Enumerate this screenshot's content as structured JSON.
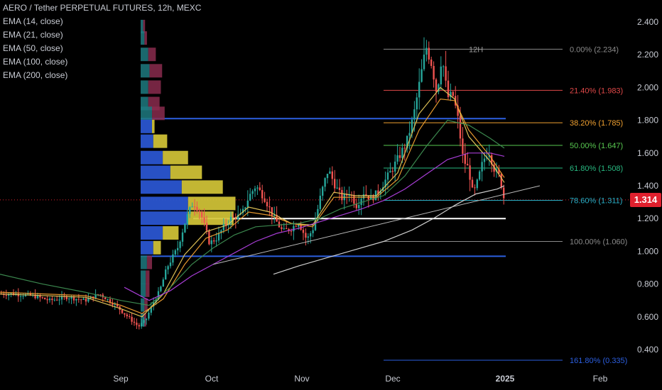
{
  "header": {
    "title": "AERO / Tether PERPETUAL FUTURES, 12h, MEXC"
  },
  "indicators": [
    "EMA (14, close)",
    "EMA (21, close)",
    "EMA (50, close)",
    "EMA (100, close)",
    "EMA (200, close)"
  ],
  "price_tag": {
    "value": "1.314",
    "color": "#e0202e"
  },
  "timeframe_label": "12H",
  "colors": {
    "up": "#26a69a",
    "down": "#ef5350",
    "ema14": "#e8c95a",
    "ema21": "#f0a030",
    "ema50": "#3e8e52",
    "ema100": "#b040e0",
    "ema200": "#d8d8d8",
    "vp_buy": "#2a55d0",
    "vp_sell": "#d4c637",
    "vp_buy_out": "#1e7a80",
    "vp_sell_out": "#8a2c4e"
  },
  "chart_data": {
    "type": "candlestick",
    "y_axis": {
      "min": 0.32,
      "max": 2.44,
      "ticks": [
        "2.400",
        "2.200",
        "2.000",
        "1.800",
        "1.600",
        "1.400",
        "1.200",
        "1.000",
        "0.800",
        "0.600",
        "0.400"
      ]
    },
    "x_axis": {
      "ticks": [
        "Sep",
        "Oct",
        "Nov",
        "Dec",
        "2025",
        "Feb"
      ]
    },
    "price_path": [
      [
        0,
        0.74
      ],
      [
        20,
        0.74
      ],
      [
        45,
        0.73
      ],
      [
        70,
        0.7
      ],
      [
        95,
        0.72
      ],
      [
        120,
        0.7
      ],
      [
        140,
        0.74
      ],
      [
        160,
        0.68
      ],
      [
        180,
        0.6
      ],
      [
        195,
        0.54
      ],
      [
        205,
        0.58
      ],
      [
        215,
        0.68
      ],
      [
        225,
        0.76
      ],
      [
        235,
        0.9
      ],
      [
        250,
        1.02
      ],
      [
        262,
        1.2
      ],
      [
        272,
        1.3
      ],
      [
        282,
        1.24
      ],
      [
        295,
        1.05
      ],
      [
        305,
        1.08
      ],
      [
        315,
        1.15
      ],
      [
        325,
        1.2
      ],
      [
        340,
        1.22
      ],
      [
        350,
        1.33
      ],
      [
        360,
        1.4
      ],
      [
        372,
        1.33
      ],
      [
        385,
        1.21
      ],
      [
        398,
        1.12
      ],
      [
        410,
        1.14
      ],
      [
        420,
        1.18
      ],
      [
        432,
        1.07
      ],
      [
        442,
        1.15
      ],
      [
        452,
        1.35
      ],
      [
        462,
        1.5
      ],
      [
        472,
        1.4
      ],
      [
        482,
        1.32
      ],
      [
        492,
        1.36
      ],
      [
        502,
        1.28
      ],
      [
        512,
        1.36
      ],
      [
        522,
        1.32
      ],
      [
        532,
        1.36
      ],
      [
        542,
        1.43
      ],
      [
        552,
        1.5
      ],
      [
        562,
        1.58
      ],
      [
        572,
        1.66
      ],
      [
        582,
        1.82
      ],
      [
        592,
        2.06
      ],
      [
        600,
        2.25
      ],
      [
        608,
        2.14
      ],
      [
        615,
        1.96
      ],
      [
        622,
        2.2
      ],
      [
        630,
        1.94
      ],
      [
        638,
        1.95
      ],
      [
        645,
        1.8
      ],
      [
        652,
        1.56
      ],
      [
        660,
        1.5
      ],
      [
        666,
        1.34
      ],
      [
        672,
        1.42
      ],
      [
        680,
        1.55
      ],
      [
        688,
        1.62
      ],
      [
        696,
        1.5
      ],
      [
        704,
        1.45
      ],
      [
        710,
        1.31
      ]
    ],
    "series": [
      {
        "name": "EMA (14, close)",
        "points": [
          [
            0,
            0.74
          ],
          [
            60,
            0.73
          ],
          [
            120,
            0.72
          ],
          [
            170,
            0.65
          ],
          [
            200,
            0.6
          ],
          [
            230,
            0.74
          ],
          [
            260,
            0.98
          ],
          [
            290,
            1.12
          ],
          [
            320,
            1.16
          ],
          [
            350,
            1.27
          ],
          [
            380,
            1.24
          ],
          [
            410,
            1.17
          ],
          [
            440,
            1.16
          ],
          [
            470,
            1.36
          ],
          [
            500,
            1.34
          ],
          [
            530,
            1.34
          ],
          [
            560,
            1.48
          ],
          [
            590,
            1.84
          ],
          [
            620,
            2.0
          ],
          [
            640,
            1.93
          ],
          [
            660,
            1.7
          ],
          [
            690,
            1.55
          ],
          [
            710,
            1.42
          ]
        ]
      },
      {
        "name": "EMA (21, close)",
        "points": [
          [
            0,
            0.75
          ],
          [
            60,
            0.74
          ],
          [
            120,
            0.73
          ],
          [
            170,
            0.67
          ],
          [
            200,
            0.62
          ],
          [
            230,
            0.71
          ],
          [
            260,
            0.92
          ],
          [
            290,
            1.08
          ],
          [
            320,
            1.13
          ],
          [
            350,
            1.24
          ],
          [
            380,
            1.22
          ],
          [
            410,
            1.17
          ],
          [
            440,
            1.15
          ],
          [
            470,
            1.33
          ],
          [
            500,
            1.33
          ],
          [
            530,
            1.33
          ],
          [
            560,
            1.44
          ],
          [
            590,
            1.74
          ],
          [
            620,
            1.93
          ],
          [
            640,
            1.92
          ],
          [
            660,
            1.74
          ],
          [
            690,
            1.58
          ],
          [
            710,
            1.45
          ]
        ]
      },
      {
        "name": "EMA (50, close)",
        "points": [
          [
            0,
            0.86
          ],
          [
            60,
            0.8
          ],
          [
            120,
            0.75
          ],
          [
            170,
            0.7
          ],
          [
            210,
            0.67
          ],
          [
            240,
            0.78
          ],
          [
            270,
            0.92
          ],
          [
            300,
            1.02
          ],
          [
            330,
            1.1
          ],
          [
            360,
            1.15
          ],
          [
            390,
            1.16
          ],
          [
            420,
            1.17
          ],
          [
            450,
            1.2
          ],
          [
            480,
            1.26
          ],
          [
            510,
            1.3
          ],
          [
            540,
            1.34
          ],
          [
            570,
            1.46
          ],
          [
            600,
            1.64
          ],
          [
            630,
            1.8
          ],
          [
            660,
            1.77
          ],
          [
            690,
            1.69
          ],
          [
            710,
            1.63
          ]
        ]
      },
      {
        "name": "EMA (100, close)",
        "points": [
          [
            175,
            0.78
          ],
          [
            210,
            0.7
          ],
          [
            240,
            0.76
          ],
          [
            270,
            0.85
          ],
          [
            300,
            0.92
          ],
          [
            330,
            0.99
          ],
          [
            360,
            1.06
          ],
          [
            390,
            1.11
          ],
          [
            420,
            1.14
          ],
          [
            450,
            1.18
          ],
          [
            480,
            1.22
          ],
          [
            510,
            1.26
          ],
          [
            540,
            1.31
          ],
          [
            570,
            1.38
          ],
          [
            600,
            1.47
          ],
          [
            630,
            1.56
          ],
          [
            660,
            1.6
          ],
          [
            690,
            1.6
          ],
          [
            710,
            1.58
          ]
        ]
      },
      {
        "name": "EMA (200, close)",
        "points": [
          [
            385,
            0.86
          ],
          [
            420,
            0.91
          ],
          [
            460,
            0.96
          ],
          [
            500,
            1.01
          ],
          [
            540,
            1.06
          ],
          [
            580,
            1.13
          ],
          [
            610,
            1.2
          ],
          [
            640,
            1.28
          ],
          [
            670,
            1.35
          ],
          [
            700,
            1.38
          ],
          [
            710,
            1.4
          ]
        ]
      }
    ],
    "trendline": [
      [
        300,
        0.92
      ],
      [
        760,
        1.4
      ]
    ],
    "fib_levels": [
      {
        "label": "0.00% (2.234)",
        "price": 2.234,
        "color": "#8a8a8a"
      },
      {
        "label": "21.40% (1.983)",
        "price": 1.983,
        "color": "#e04848"
      },
      {
        "label": "38.20% (1.785)",
        "price": 1.785,
        "color": "#f0a030"
      },
      {
        "label": "50.00% (1.647)",
        "price": 1.647,
        "color": "#58c850"
      },
      {
        "label": "61.80% (1.508)",
        "price": 1.508,
        "color": "#28b880"
      },
      {
        "label": "78.60% (1.311)",
        "price": 1.311,
        "color": "#2ab0c8"
      },
      {
        "label": "100.00% (1.060)",
        "price": 1.06,
        "color": "#8a8a8a"
      },
      {
        "label": "161.80% (0.335)",
        "price": 0.335,
        "color": "#2c5fe0"
      }
    ],
    "horizontal_lines": [
      {
        "price": 1.81,
        "color": "#2c5fe0"
      },
      {
        "price": 1.2,
        "color": "#ffffff"
      },
      {
        "price": 0.97,
        "color": "#2c5fe0"
      }
    ],
    "volume_profile": [
      {
        "price": 2.37,
        "buy": 4,
        "sell": 3
      },
      {
        "price": 2.3,
        "buy": 6,
        "sell": 4
      },
      {
        "price": 2.2,
        "buy": 12,
        "sell": 12
      },
      {
        "price": 2.1,
        "buy": 14,
        "sell": 20
      },
      {
        "price": 2.0,
        "buy": 12,
        "sell": 20
      },
      {
        "price": 1.9,
        "buy": 12,
        "sell": 18
      },
      {
        "price": 1.84,
        "buy": 18,
        "sell": 20
      },
      {
        "price": 1.76,
        "buy": 18,
        "sell": 4
      },
      {
        "price": 1.67,
        "buy": 20,
        "sell": 22
      },
      {
        "price": 1.57,
        "buy": 35,
        "sell": 40
      },
      {
        "price": 1.48,
        "buy": 47,
        "sell": 50
      },
      {
        "price": 1.39,
        "buy": 65,
        "sell": 65
      },
      {
        "price": 1.29,
        "buy": 75,
        "sell": 75
      },
      {
        "price": 1.2,
        "buy": 75,
        "sell": 72
      },
      {
        "price": 1.11,
        "buy": 35,
        "sell": 25
      },
      {
        "price": 1.02,
        "buy": 20,
        "sell": 12
      },
      {
        "price": 0.93,
        "buy": 10,
        "sell": 8
      },
      {
        "price": 0.84,
        "buy": 8,
        "sell": 6
      },
      {
        "price": 0.76,
        "buy": 8,
        "sell": 6
      },
      {
        "price": 0.67,
        "buy": 6,
        "sell": 5
      },
      {
        "price": 0.58,
        "buy": 5,
        "sell": 4
      }
    ]
  }
}
